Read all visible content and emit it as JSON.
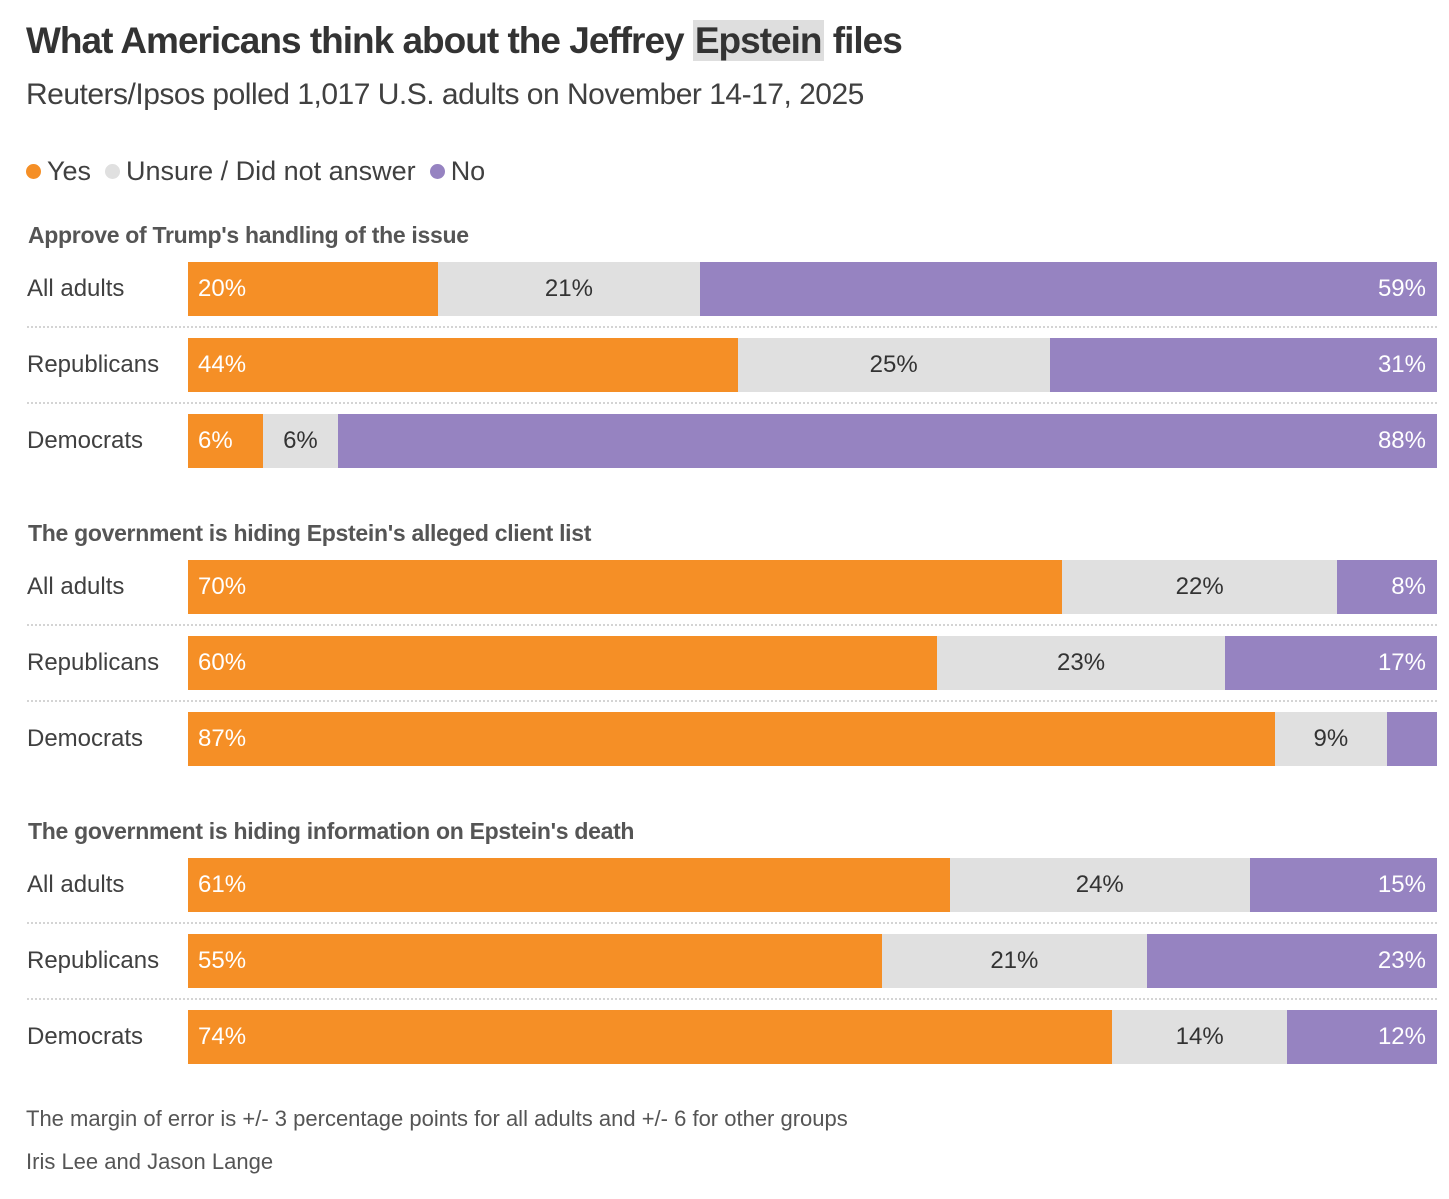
{
  "chart_data": {
    "type": "bar",
    "orientation": "horizontal-stacked-100",
    "title_parts": [
      "What Americans think about the Jeffrey ",
      "Epstein",
      " files"
    ],
    "subtitle": "Reuters/Ipsos polled 1,017 U.S. adults on November 14-17, 2025",
    "legend": [
      {
        "key": "yes",
        "label": "Yes",
        "color": "#F58F26"
      },
      {
        "key": "unsure",
        "label": "Unsure / Did not answer",
        "color": "#E0E0E0"
      },
      {
        "key": "no",
        "label": "No",
        "color": "#9683C1"
      }
    ],
    "legend_position": "top-left",
    "sections": [
      {
        "title": "Approve of Trump's handling of the issue",
        "rows": [
          {
            "label": "All adults",
            "yes": 20,
            "unsure": 21,
            "no": 59
          },
          {
            "label": "Republicans",
            "yes": 44,
            "unsure": 25,
            "no": 31
          },
          {
            "label": "Democrats",
            "yes": 6,
            "unsure": 6,
            "no": 88
          }
        ]
      },
      {
        "title": "The government is hiding Epstein's alleged client list",
        "rows": [
          {
            "label": "All adults",
            "yes": 70,
            "unsure": 22,
            "no": 8
          },
          {
            "label": "Republicans",
            "yes": 60,
            "unsure": 23,
            "no": 17
          },
          {
            "label": "Democrats",
            "yes": 87,
            "unsure": 9,
            "no": 4,
            "hide_no_label": true
          }
        ]
      },
      {
        "title": "The government is hiding information on Epstein's death",
        "rows": [
          {
            "label": "All adults",
            "yes": 61,
            "unsure": 24,
            "no": 15
          },
          {
            "label": "Republicans",
            "yes": 55,
            "unsure": 21,
            "no": 23
          },
          {
            "label": "Democrats",
            "yes": 74,
            "unsure": 14,
            "no": 12
          }
        ]
      }
    ],
    "notes": "The margin of error is +/- 3 percentage points for all adults and +/- 6 for other groups",
    "credit": "Iris Lee and Jason Lange"
  }
}
